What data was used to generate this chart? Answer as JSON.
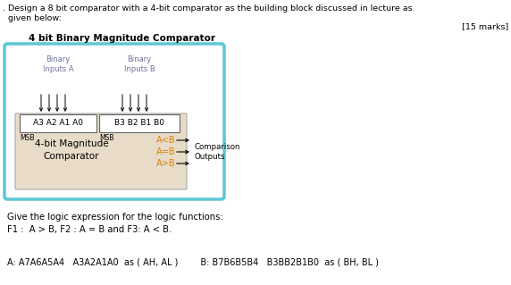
{
  "title_line1": ". Design a 8 bit comparator with a 4-bit comparator as the building block discussed in lecture as",
  "title_line2": "  given below:",
  "marks": "[15 marks]",
  "subtitle": "4 bit Binary Magnitude Comparator",
  "label_binary_a": "Binary\nInputs A",
  "label_binary_b": "Binary\nInputs B",
  "label_a_inputs": "A3 A2 A1 A0",
  "label_b_inputs": "B3 B2 B1 B0",
  "label_msb_left": "MSB",
  "label_msb_right": "MSB",
  "label_main": "4-bit Magnitude\nComparator",
  "label_acb": "A<B",
  "label_aeb": "A=B",
  "label_agb": "A>B",
  "label_comparison": "Comparison\nOutputs",
  "text_give": "Give the logic expression for the logic functions:",
  "text_f": "F1 :  A > B, F2 : A = B and F3: A < B.",
  "text_a": "A: A7A6A5A4   A3A2A1A0  as ( AH, AL )        B: B7B6B5B4   B3BB2B1B0  as ( BH, BL )",
  "bg_color": "#ffffff",
  "outer_box_color": "#5bc8d4",
  "inner_box_color": "#e8dcc8",
  "input_box_color": "#ffffff",
  "orange_color": "#d4820a",
  "arrow_color": "#000000",
  "binary_label_color": "#7070a0"
}
